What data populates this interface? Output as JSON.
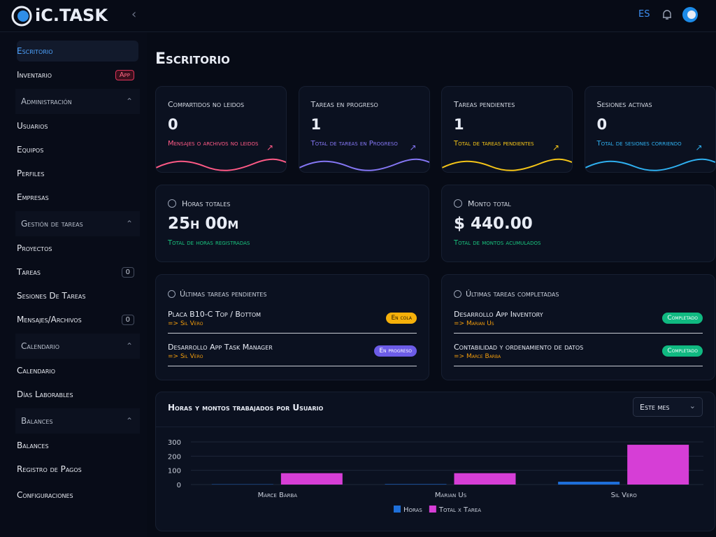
{
  "header": {
    "logo": "iC.TASK",
    "language": "ES"
  },
  "sidebar": {
    "top_items": [
      {
        "label": "Escritorio"
      },
      {
        "label": "Inventario",
        "badge": "App"
      }
    ],
    "sections": [
      {
        "title": "Administración",
        "items": [
          {
            "label": "Usuarios"
          },
          {
            "label": "Equipos"
          },
          {
            "label": "Perfiles"
          },
          {
            "label": "Empresas"
          }
        ]
      },
      {
        "title": "Gestión de tareas",
        "items": [
          {
            "label": "Proyectos"
          },
          {
            "label": "Tareas",
            "badge": 0
          },
          {
            "label": "Sesiones De Tareas"
          },
          {
            "label": "Mensajes/Archivos",
            "badge": 0
          }
        ]
      },
      {
        "title": "Calendario",
        "items": [
          {
            "label": "Calendario"
          },
          {
            "label": "Días Laborables"
          }
        ]
      },
      {
        "title": "Balances",
        "items": [
          {
            "label": "Balances"
          },
          {
            "label": "Registro de Pagos"
          }
        ]
      }
    ],
    "bottom_item": "Configuraciones"
  },
  "page_title": "Escritorio",
  "stat_cards": [
    {
      "title": "Compartidos no leidos",
      "value": 0,
      "subtitle": "Mensajes o archivos no leidos",
      "color": "#ff5a86"
    },
    {
      "title": "Tareas en progreso",
      "value": 1,
      "subtitle": "Total de tareas en Progreso",
      "color": "#8577f5"
    },
    {
      "title": "Tareas pendientes",
      "value": 1,
      "subtitle": "Total de tareas pendientes",
      "color": "#f5c518"
    },
    {
      "title": "Sesiones activas",
      "value": 0,
      "subtitle": "Total de sesiones corriendo",
      "color": "#2fb0f0"
    }
  ],
  "summary_cards": [
    {
      "title": "Horas totales",
      "value": "25h 00m",
      "subtitle": "Total de horas registradas"
    },
    {
      "title": "Monto total",
      "value": "$ 440.00",
      "subtitle": "Total de montos acumulados"
    }
  ],
  "pending_tasks": {
    "title": "Últimas tareas pendientes",
    "items": [
      {
        "name": "Placa B10-C Top / Bottom",
        "assignee": "=> Sil Vero",
        "status": "En cola",
        "color": "#f5b00a"
      },
      {
        "name": "Desarrollo App Task Manager",
        "assignee": "=> Sil Vero",
        "status": "En progreso",
        "color": "#6c5ce7"
      }
    ]
  },
  "completed_tasks": {
    "title": "Últimas tareas completadas",
    "items": [
      {
        "name": "Desarrollo App Inventory",
        "assignee": "=> Marian Us",
        "status": "Completado",
        "color": "#10b981"
      },
      {
        "name": "Contabilidad y ordenamiento de datos",
        "assignee": "=> Marce Barba",
        "status": "Completado",
        "color": "#10b981"
      }
    ]
  },
  "chart_data": {
    "type": "bar",
    "title": "Horas y montos trabajados por Usuario",
    "filter": "Este mes",
    "categories": [
      "Marce Barba",
      "Marian Us",
      "Sil Vero"
    ],
    "series": [
      {
        "name": "Horas",
        "color": "#1e6fd9",
        "values": [
          2,
          3,
          20
        ]
      },
      {
        "name": "Total x Tarea",
        "color": "#d63ed6",
        "values": [
          80,
          80,
          280
        ]
      }
    ],
    "ylim": [
      0,
      300
    ],
    "yticks": [
      0,
      100,
      200,
      300
    ],
    "grid": true
  }
}
